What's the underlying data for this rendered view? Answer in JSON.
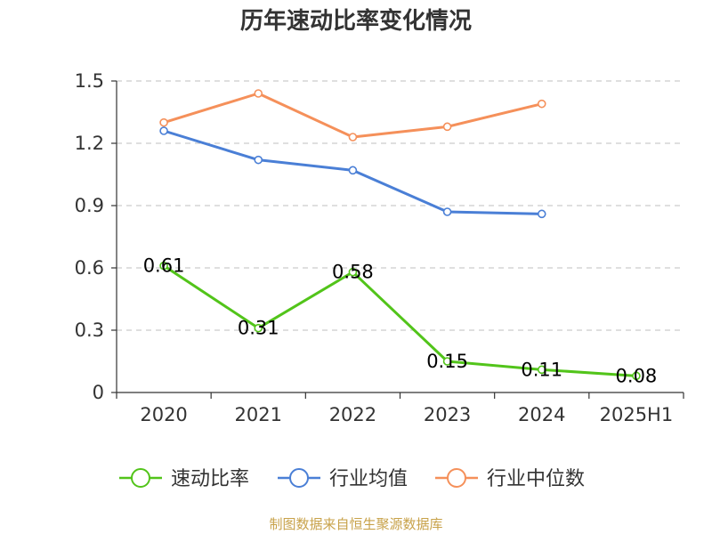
{
  "chart_data": {
    "type": "line",
    "title": "历年速动比率变化情况",
    "categories": [
      "2020",
      "2021",
      "2022",
      "2023",
      "2024",
      "2025H1"
    ],
    "ylim": [
      0,
      1.5
    ],
    "yticks": [
      "0",
      "0.3",
      "0.6",
      "0.9",
      "1.2",
      "1.5"
    ],
    "grid": true,
    "legend_position": "bottom",
    "series": [
      {
        "name": "速动比率",
        "color": "#52c41a",
        "values": [
          0.61,
          0.31,
          0.58,
          0.15,
          0.11,
          0.08
        ],
        "labels": [
          "0.61",
          "0.31",
          "0.58",
          "0.15",
          "0.11",
          "0.08"
        ]
      },
      {
        "name": "行业均值",
        "color": "#4a7fd6",
        "values": [
          1.26,
          1.12,
          1.07,
          0.87,
          0.86,
          null
        ]
      },
      {
        "name": "行业中位数",
        "color": "#f5905a",
        "values": [
          1.3,
          1.44,
          1.23,
          1.28,
          1.39,
          null
        ]
      }
    ]
  },
  "source": {
    "text": "制图数据来自恒生聚源数据库",
    "color": "#c8a24a"
  }
}
